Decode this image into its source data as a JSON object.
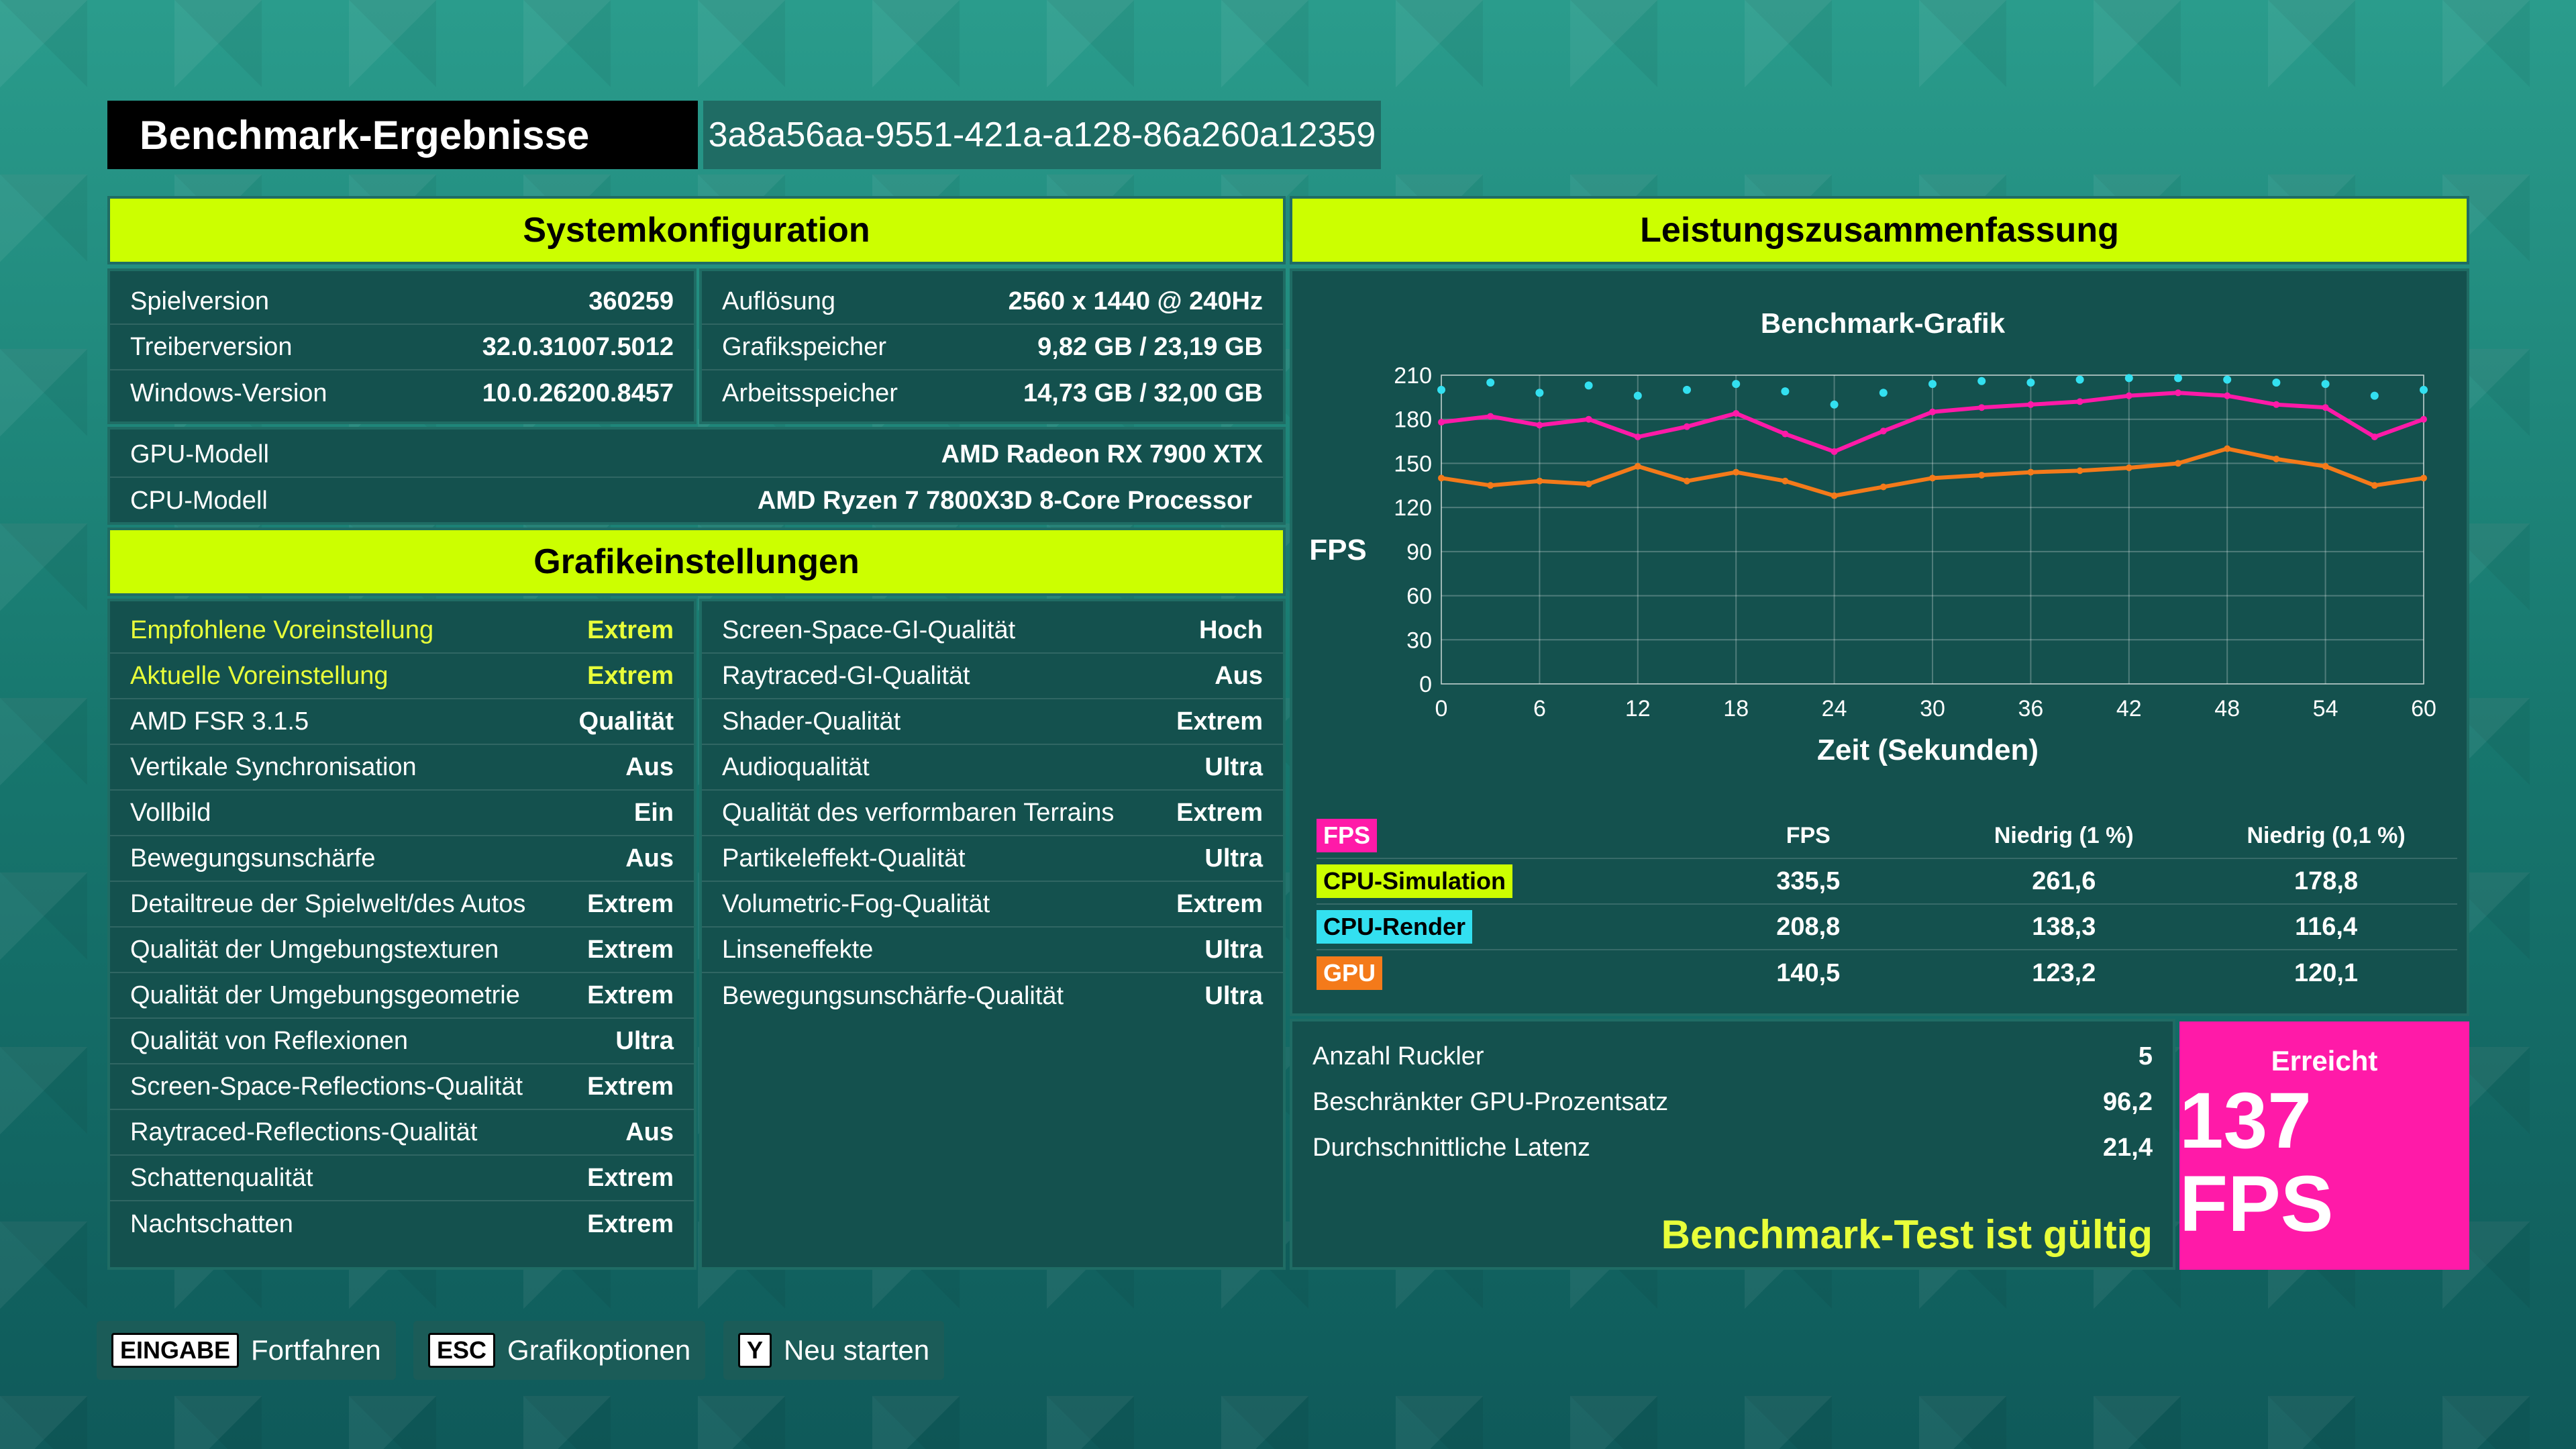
{
  "header": {
    "title": "Benchmark-Ergebnisse",
    "run_id": "3a8a56aa-9551-421a-a128-86a260a12359"
  },
  "system": {
    "heading": "Systemkonfiguration",
    "left": [
      {
        "label": "Spielversion",
        "value": "360259"
      },
      {
        "label": "Treiberversion",
        "value": "32.0.31007.5012"
      },
      {
        "label": "Windows-Version",
        "value": "10.0.26200.8457"
      }
    ],
    "right": [
      {
        "label": "Auflösung",
        "value": "2560 x 1440 @ 240Hz"
      },
      {
        "label": "Grafikspeicher",
        "value": "9,82 GB / 23,19 GB"
      },
      {
        "label": "Arbeitsspeicher",
        "value": "14,73 GB / 32,00 GB"
      }
    ],
    "hw": [
      {
        "label": "GPU-Modell",
        "value": "AMD Radeon RX 7900 XTX"
      },
      {
        "label": "CPU-Modell",
        "value": "AMD Ryzen 7 7800X3D 8-Core Processor"
      }
    ]
  },
  "graphics": {
    "heading": "Grafikeinstellungen",
    "left": [
      {
        "label": "Empfohlene Voreinstellung",
        "value": "Extrem"
      },
      {
        "label": "Aktuelle Voreinstellung",
        "value": "Extrem"
      },
      {
        "label": "AMD FSR 3.1.5",
        "value": "Qualität"
      },
      {
        "label": "Vertikale Synchronisation",
        "value": "Aus"
      },
      {
        "label": "Vollbild",
        "value": "Ein"
      },
      {
        "label": "Bewegungsunschärfe",
        "value": "Aus"
      },
      {
        "label": "Detailtreue der Spielwelt/des Autos",
        "value": "Extrem"
      },
      {
        "label": "Qualität der Umgebungstexturen",
        "value": "Extrem"
      },
      {
        "label": "Qualität der Umgebungsgeometrie",
        "value": "Extrem"
      },
      {
        "label": "Qualität von Reflexionen",
        "value": "Ultra"
      },
      {
        "label": "Screen-Space-Reflections-Qualität",
        "value": "Extrem"
      },
      {
        "label": "Raytraced-Reflections-Qualität",
        "value": "Aus"
      },
      {
        "label": "Schattenqualität",
        "value": "Extrem"
      },
      {
        "label": "Nachtschatten",
        "value": "Extrem"
      }
    ],
    "right": [
      {
        "label": "Screen-Space-GI-Qualität",
        "value": "Hoch"
      },
      {
        "label": "Raytraced-GI-Qualität",
        "value": "Aus"
      },
      {
        "label": "Shader-Qualität",
        "value": "Extrem"
      },
      {
        "label": "Audioqualität",
        "value": "Ultra"
      },
      {
        "label": "Qualität des verformbaren Terrains",
        "value": "Extrem"
      },
      {
        "label": "Partikeleffekt-Qualität",
        "value": "Ultra"
      },
      {
        "label": "Volumetric-Fog-Qualität",
        "value": "Extrem"
      },
      {
        "label": "Linseneffekte",
        "value": "Ultra"
      },
      {
        "label": "Bewegungsunschärfe-Qualität",
        "value": "Ultra"
      }
    ]
  },
  "performance": {
    "heading": "Leistungszusammenfassung",
    "table_headers": [
      "FPS",
      "Niedrig (1 %)",
      "Niedrig (0,1 %)"
    ],
    "legend_fps": "FPS",
    "rows": [
      {
        "name": "CPU-Simulation",
        "fps": "335,5",
        "low1": "261,6",
        "low01": "178,8",
        "color": "#ccff00"
      },
      {
        "name": "CPU-Render",
        "fps": "208,8",
        "low1": "138,3",
        "low01": "116,4",
        "color": "#33e0f0"
      },
      {
        "name": "GPU",
        "fps": "140,5",
        "low1": "123,2",
        "low01": "120,1",
        "color": "#f47a1a"
      }
    ],
    "fps_color": "#ff1aa8"
  },
  "stats": [
    {
      "label": "Anzahl Ruckler",
      "value": "5"
    },
    {
      "label": "Beschränkter GPU-Prozentsatz",
      "value": "96,2"
    },
    {
      "label": "Durchschnittliche Latenz",
      "value": "21,4"
    }
  ],
  "valid_text": "Benchmark-Test ist gültig",
  "result": {
    "label": "Erreicht",
    "value": "137 FPS"
  },
  "footer": [
    {
      "key": "EINGABE",
      "label": "Fortfahren"
    },
    {
      "key": "ESC",
      "label": "Grafikoptionen"
    },
    {
      "key": "Y",
      "label": "Neu starten"
    }
  ],
  "chart_data": {
    "type": "line",
    "title": "Benchmark-Grafik",
    "xlabel": "Zeit (Sekunden)",
    "ylabel": "FPS",
    "xlim": [
      0,
      60
    ],
    "ylim": [
      0,
      210
    ],
    "xticks": [
      0,
      6,
      12,
      18,
      24,
      30,
      36,
      42,
      48,
      54,
      60
    ],
    "yticks": [
      0,
      30,
      60,
      90,
      120,
      150,
      180,
      210
    ],
    "grid": true,
    "x": [
      0,
      3,
      6,
      9,
      12,
      15,
      18,
      21,
      24,
      27,
      30,
      33,
      36,
      39,
      42,
      45,
      48,
      51,
      54,
      57,
      60
    ],
    "series": [
      {
        "name": "FPS",
        "color": "#ff1aa8",
        "values": [
          178,
          182,
          176,
          180,
          168,
          175,
          184,
          170,
          158,
          172,
          185,
          188,
          190,
          192,
          196,
          198,
          196,
          190,
          188,
          168,
          180
        ]
      },
      {
        "name": "CPU-Render",
        "color": "#33e0f0",
        "style": "scatter",
        "values": [
          200,
          205,
          198,
          203,
          196,
          200,
          204,
          199,
          190,
          198,
          204,
          206,
          205,
          207,
          208,
          208,
          207,
          205,
          204,
          196,
          200
        ]
      },
      {
        "name": "GPU",
        "color": "#f47a1a",
        "values": [
          140,
          135,
          138,
          136,
          148,
          138,
          144,
          138,
          128,
          134,
          140,
          142,
          144,
          145,
          147,
          150,
          160,
          153,
          148,
          135,
          140
        ]
      }
    ]
  }
}
